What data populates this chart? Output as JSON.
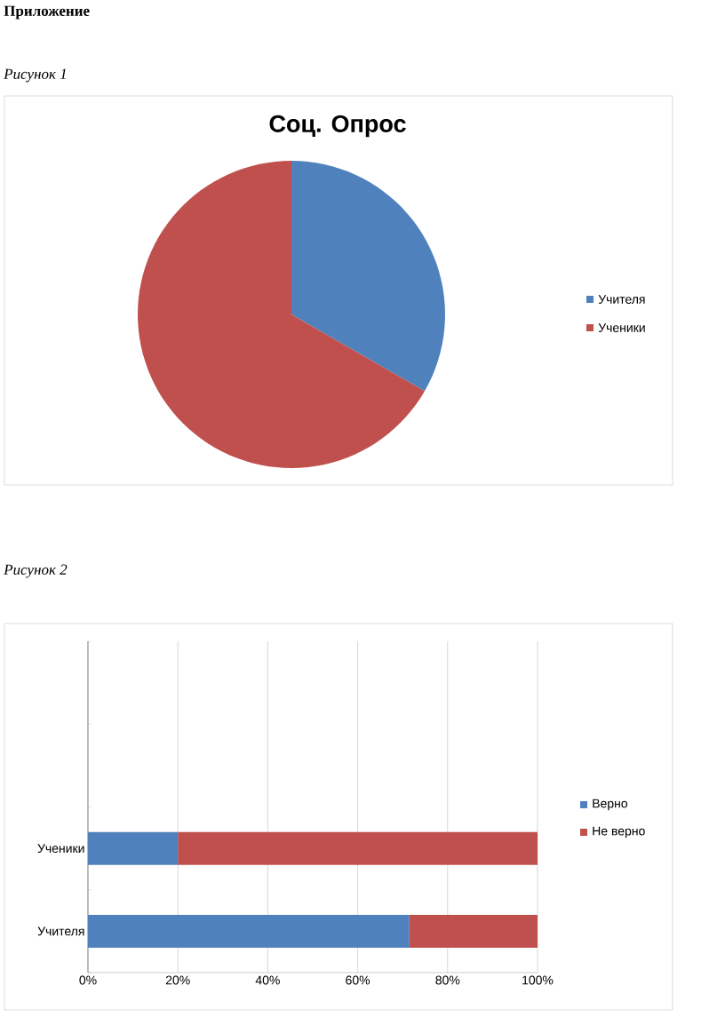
{
  "chart_data": [
    {
      "type": "pie",
      "title": "Соц. Опрос",
      "categories": [
        "Учителя",
        "Ученики"
      ],
      "values": [
        33.3,
        66.7
      ],
      "colors": [
        "#4f81bd",
        "#c0504d"
      ],
      "legend": "right",
      "annotations": [
        "Приложение",
        "Рисунок 1"
      ]
    },
    {
      "type": "bar",
      "orientation": "horizontal",
      "stacked": true,
      "categories": [
        null,
        null,
        "Ученики",
        "Учителя"
      ],
      "series": [
        {
          "name": "Верно",
          "color": "#4f81bd",
          "values": [
            null,
            null,
            20,
            71.5
          ]
        },
        {
          "name": "Не верно",
          "color": "#c0504d",
          "values": [
            null,
            null,
            80,
            28.5
          ]
        }
      ],
      "xlim": [
        0,
        100
      ],
      "xticks": [
        {
          "value": 0,
          "label": "0%"
        },
        {
          "value": 20,
          "label": "20%"
        },
        {
          "value": 40,
          "label": "40%"
        },
        {
          "value": 60,
          "label": "60%"
        },
        {
          "value": 80,
          "label": "80%"
        },
        {
          "value": 100,
          "label": "100%"
        }
      ],
      "grid": "x",
      "legend": "right",
      "annotations": [
        "Рисунок 2"
      ]
    }
  ]
}
